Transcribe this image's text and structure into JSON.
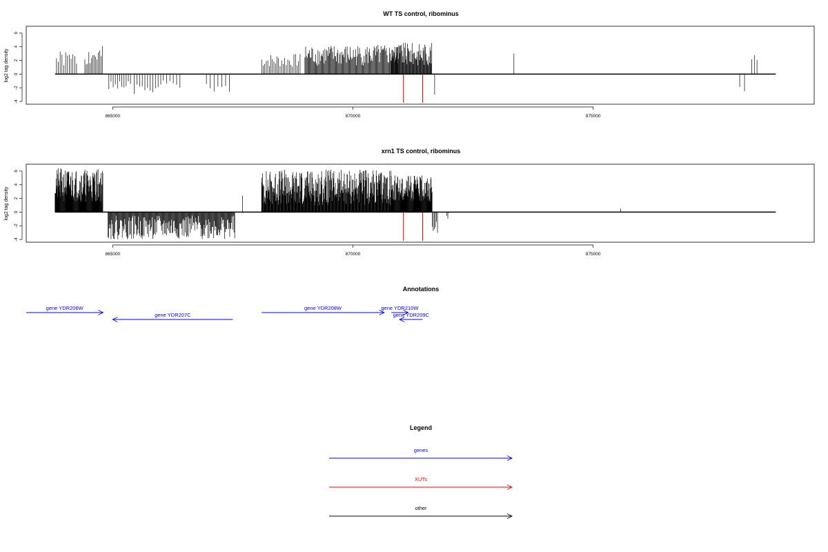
{
  "colors": {
    "genes": "#0000ff",
    "xuts": "#ff0000",
    "other": "#000000"
  },
  "chart_data": [
    {
      "type": "bar",
      "title": "WT TS control, ribominus",
      "ylabel": "log2 tag density",
      "xlim": [
        863200,
        879600
      ],
      "ylim": [
        -4.4,
        7
      ],
      "xticks": [
        865000,
        870000,
        875000
      ],
      "yticks": [
        -4,
        -2,
        0,
        2,
        4,
        6
      ],
      "baseline_x": [
        863800,
        878800
      ],
      "clusters": [
        {
          "x0": 863830,
          "x1": 864280,
          "min": 1.0,
          "max": 3.4,
          "step": 38,
          "seed": 1
        },
        {
          "x0": 864420,
          "x1": 864800,
          "min": 1.0,
          "max": 4.1,
          "step": 28,
          "seed": 2
        },
        {
          "x0": 864920,
          "x1": 865380,
          "min": -2.5,
          "max": -1.0,
          "step": 45,
          "seed": 3
        },
        {
          "x0": 865450,
          "x1": 866000,
          "min": -3.0,
          "max": -1.0,
          "step": 55,
          "seed": 4
        },
        {
          "x0": 866050,
          "x1": 866450,
          "min": -2.0,
          "max": -0.8,
          "step": 70,
          "seed": 5
        },
        {
          "x0": 866950,
          "x1": 867500,
          "min": -2.6,
          "max": -1.0,
          "step": 80,
          "seed": 6
        },
        {
          "x0": 868100,
          "x1": 868900,
          "min": 1.0,
          "max": 3.0,
          "step": 32,
          "seed": 7
        },
        {
          "x0": 869000,
          "x1": 870950,
          "min": 1.2,
          "max": 4.3,
          "step": 16,
          "seed": 8
        },
        {
          "x0": 870800,
          "x1": 871650,
          "min": 1.2,
          "max": 4.6,
          "step": 12,
          "seed": 9
        },
        {
          "x0": 871700,
          "x1": 871740,
          "min": -3.0,
          "max": -3.0,
          "step": 50,
          "seed": 10
        },
        {
          "x0": 873350,
          "x1": 873380,
          "min": 3.0,
          "max": 3.0,
          "step": 50,
          "seed": 11
        },
        {
          "x0": 878050,
          "x1": 878150,
          "min": -2.6,
          "max": -1.6,
          "step": 100,
          "seed": 12
        },
        {
          "x0": 878300,
          "x1": 878460,
          "min": 1.0,
          "max": 3.0,
          "step": 55,
          "seed": 13
        }
      ],
      "highlight_bars": [
        {
          "x": 871050,
          "y": -4.2
        },
        {
          "x": 871450,
          "y": -4.2
        }
      ]
    },
    {
      "type": "bar",
      "title": "xrn1 TS control, ribominus",
      "ylabel": "log2 tag density",
      "xlim": [
        863200,
        879600
      ],
      "ylim": [
        -4.4,
        7
      ],
      "xticks": [
        865000,
        870000,
        875000
      ],
      "yticks": [
        -4,
        -2,
        0,
        2,
        4,
        6
      ],
      "baseline_x": [
        863800,
        878800
      ],
      "clusters": [
        {
          "x0": 863800,
          "x1": 864800,
          "min": 1.5,
          "max": 6.4,
          "step": 7,
          "seed": 21
        },
        {
          "x0": 864900,
          "x1": 867550,
          "min": -4.0,
          "max": -0.5,
          "step": 13,
          "seed": 22
        },
        {
          "x0": 867700,
          "x1": 867740,
          "min": 2.4,
          "max": 2.4,
          "step": 50,
          "seed": 23
        },
        {
          "x0": 868100,
          "x1": 870800,
          "min": 1.0,
          "max": 6.2,
          "step": 8,
          "seed": 24
        },
        {
          "x0": 870800,
          "x1": 871650,
          "min": 1.5,
          "max": 5.4,
          "step": 7,
          "seed": 25
        },
        {
          "x0": 871650,
          "x1": 871760,
          "min": -3.4,
          "max": -0.6,
          "step": 22,
          "seed": 26
        },
        {
          "x0": 871950,
          "x1": 872000,
          "min": -1.0,
          "max": 0.6,
          "step": 25,
          "seed": 27
        },
        {
          "x0": 875570,
          "x1": 875600,
          "min": 0.5,
          "max": 0.5,
          "step": 50,
          "seed": 28
        }
      ],
      "highlight_bars": [
        {
          "x": 871050,
          "y": -4.2
        },
        {
          "x": 871450,
          "y": -4.2
        }
      ]
    }
  ],
  "annotations": {
    "title": "Annotations",
    "genes": [
      {
        "label": "gene YDR206W",
        "x0": 863200,
        "x1": 864800,
        "strand": "+",
        "row": 0
      },
      {
        "label": "gene YDR207C",
        "x0": 865000,
        "x1": 867500,
        "strand": "-",
        "row": 1
      },
      {
        "label": "gene YDR208W",
        "x0": 868100,
        "x1": 870650,
        "strand": "+",
        "row": 0
      },
      {
        "label": "gene YDR210W",
        "x0": 870800,
        "x1": 871150,
        "strand": "+",
        "row": 0
      },
      {
        "label": "gene YDR209C",
        "x0": 870970,
        "x1": 871450,
        "strand": "-",
        "row": 1
      }
    ]
  },
  "legend": {
    "title": "Legend",
    "items": [
      {
        "label": "genes",
        "color_key": "genes"
      },
      {
        "label": "XUTs",
        "color_key": "xuts"
      },
      {
        "label": "other",
        "color_key": "other"
      }
    ]
  }
}
